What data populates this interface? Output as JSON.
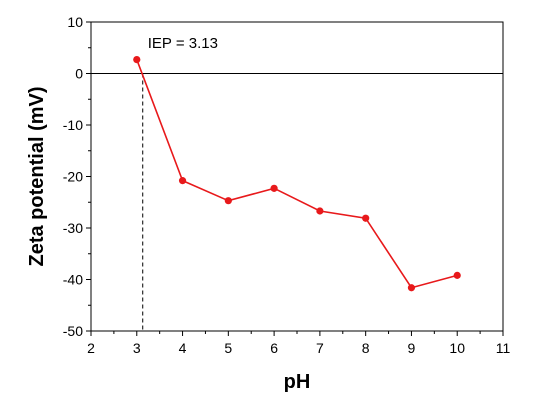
{
  "chart_data": {
    "type": "line",
    "title": "",
    "xlabel": "pH",
    "ylabel": "Zeta potential (mV)",
    "xlim": [
      2,
      11
    ],
    "ylim": [
      -50,
      10
    ],
    "xticks": [
      2,
      3,
      4,
      5,
      6,
      7,
      8,
      9,
      10,
      11
    ],
    "yticks": [
      10,
      0,
      -10,
      -20,
      -30,
      -40,
      -50
    ],
    "xtick_labels": [
      "2",
      "3",
      "4",
      "5",
      "6",
      "7",
      "8",
      "9",
      "10",
      "11"
    ],
    "ytick_labels": [
      "10",
      "0",
      "-10",
      "-20",
      "-30",
      "-40",
      "-50"
    ],
    "grid": false,
    "legend": "none",
    "series": [
      {
        "color": "#e8191b",
        "x": [
          3,
          4,
          5,
          6,
          7,
          8,
          9,
          10
        ],
        "y": [
          2.7,
          -20.8,
          -24.7,
          -22.3,
          -26.7,
          -28.1,
          -41.6,
          -39.2
        ]
      }
    ],
    "zero_line": 0,
    "iep": {
      "x": 3.13,
      "label": "IEP = 3.13"
    }
  }
}
